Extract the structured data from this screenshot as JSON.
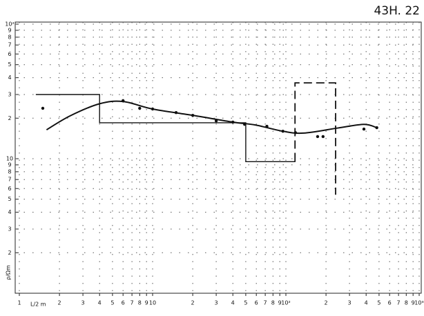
{
  "chart_data": {
    "type": "line",
    "title": "43H. 22",
    "x_label": "L/2 m",
    "y_label": "ρ/Ωm",
    "log_x": true,
    "log_y": true,
    "grid": true,
    "xlim": [
      1,
      1000
    ],
    "ylim": [
      1,
      100
    ],
    "xticks": [
      1,
      2,
      3,
      4,
      5,
      6,
      7,
      8,
      9,
      10,
      {
        "value": 20,
        "label": "2"
      },
      {
        "value": 30,
        "label": "3"
      },
      {
        "value": 40,
        "label": "4"
      },
      {
        "value": 50,
        "label": "5"
      },
      {
        "value": 60,
        "label": "6"
      },
      {
        "value": 70,
        "label": "7"
      },
      {
        "value": 80,
        "label": "8"
      },
      {
        "value": 90,
        "label": "9"
      },
      {
        "value": 100,
        "label": "10²"
      },
      {
        "value": 200,
        "label": "2"
      },
      {
        "value": 300,
        "label": "3"
      },
      {
        "value": 400,
        "label": "4"
      },
      {
        "value": 500,
        "label": "5"
      },
      {
        "value": 600,
        "label": "6"
      },
      {
        "value": 700,
        "label": "7"
      },
      {
        "value": 800,
        "label": "8"
      },
      {
        "value": 900,
        "label": "9"
      },
      {
        "value": 1000,
        "label": "10³"
      }
    ],
    "yticks": [
      2,
      3,
      4,
      5,
      6,
      7,
      8,
      9,
      10,
      {
        "value": 20,
        "label": "2"
      },
      {
        "value": 30,
        "label": "3"
      },
      {
        "value": 40,
        "label": "4"
      },
      {
        "value": 50,
        "label": "5"
      },
      {
        "value": 60,
        "label": "6"
      },
      {
        "value": 70,
        "label": "7"
      },
      {
        "value": 80,
        "label": "8"
      },
      {
        "value": 90,
        "label": "9"
      },
      {
        "value": 100,
        "label": "10²"
      }
    ],
    "series": [
      {
        "mark": "dot",
        "color": "#111",
        "x": [
          1.5,
          6,
          8,
          10,
          15,
          20,
          30,
          40,
          49,
          72,
          95,
          118,
          173,
          190,
          385,
          481
        ],
        "values": [
          23.7,
          27,
          23.7,
          23.4,
          22,
          21,
          19.1,
          18.7,
          18,
          17.4,
          16,
          15.6,
          14.6,
          14.6,
          16.6,
          17
        ]
      },
      {
        "mark": "curve",
        "color": "#111",
        "x": [
          1.6,
          2.4,
          4,
          6,
          10,
          20,
          40,
          59,
          95,
          136,
          245,
          385,
          481
        ],
        "values": [
          16.4,
          20.8,
          25.6,
          26.6,
          23.4,
          21,
          18.7,
          17.8,
          16,
          15.5,
          16.9,
          18,
          17
        ]
      },
      {
        "mark": "solid",
        "color": "#111",
        "x": [
          1.33,
          4,
          4,
          50,
          50,
          117,
          117
        ],
        "values": [
          30,
          30,
          18.5,
          18.5,
          9.5,
          9.5,
          10
        ]
      },
      {
        "mark": "dashed",
        "color": "#111",
        "x": [
          117,
          117,
          236,
          236
        ],
        "values": [
          9.6,
          36.6,
          36.6,
          5.4
        ]
      }
    ]
  }
}
